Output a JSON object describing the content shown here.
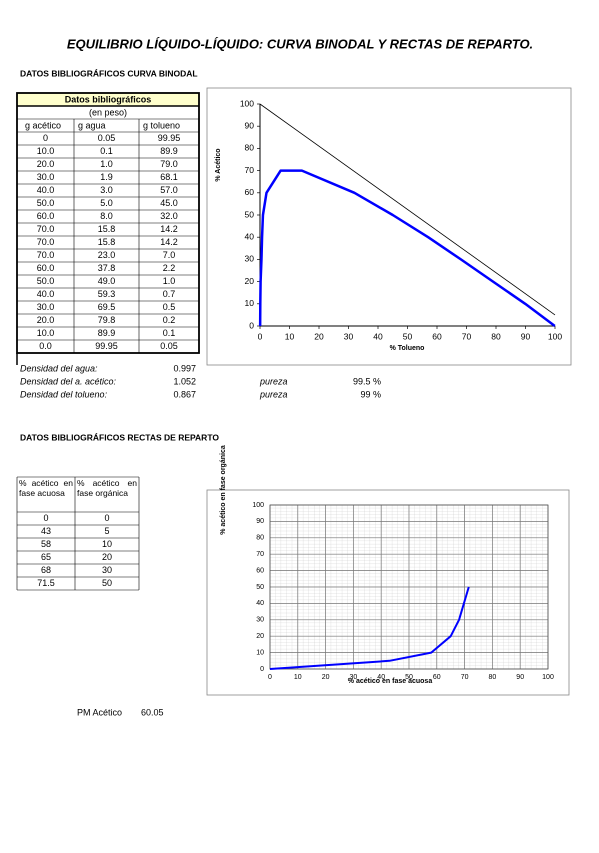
{
  "title": "EQUILIBRIO LÍQUIDO-LÍQUIDO: CURVA BINODAL Y RECTAS DE REPARTO.",
  "section_binodal": "DATOS BIBLIOGRÁFICOS CURVA BINODAL",
  "table_binodal": {
    "title": "Datos bibliográficos",
    "subtitle": "(en peso)",
    "columns": [
      "g acético",
      "g agua",
      "g tolueno"
    ],
    "rows": [
      [
        "0",
        "0.05",
        "99.95"
      ],
      [
        "10.0",
        "0.1",
        "89.9"
      ],
      [
        "20.0",
        "1.0",
        "79.0"
      ],
      [
        "30.0",
        "1.9",
        "68.1"
      ],
      [
        "40.0",
        "3.0",
        "57.0"
      ],
      [
        "50.0",
        "5.0",
        "45.0"
      ],
      [
        "60.0",
        "8.0",
        "32.0"
      ],
      [
        "70.0",
        "15.8",
        "14.2"
      ],
      [
        "70.0",
        "15.8",
        "14.2"
      ],
      [
        "70.0",
        "23.0",
        "7.0"
      ],
      [
        "60.0",
        "37.8",
        "2.2"
      ],
      [
        "50.0",
        "49.0",
        "1.0"
      ],
      [
        "40.0",
        "59.3",
        "0.7"
      ],
      [
        "30.0",
        "69.5",
        "0.5"
      ],
      [
        "20.0",
        "79.8",
        "0.2"
      ],
      [
        "10.0",
        "89.9",
        "0.1"
      ],
      [
        "0.0",
        "99.95",
        "0.05"
      ]
    ]
  },
  "densities": [
    {
      "label": "Densidad del agua:",
      "value": "0.997"
    },
    {
      "label": "Densidad del a. acético:",
      "value": "1.052",
      "purity_label": "pureza",
      "purity": "99.5 %"
    },
    {
      "label": "Densidad del tolueno:",
      "value": "0.867",
      "purity_label": "pureza",
      "purity": "99 %"
    }
  ],
  "section_reparto": "DATOS BIBLIOGRÁFICOS RECTAS DE REPARTO",
  "table_reparto": {
    "columns": [
      "% acético en fase acuosa",
      "% acético en fase orgánica"
    ],
    "rows": [
      [
        "0",
        "0"
      ],
      [
        "43",
        "5"
      ],
      [
        "58",
        "10"
      ],
      [
        "65",
        "20"
      ],
      [
        "68",
        "30"
      ],
      [
        "71.5",
        "50"
      ]
    ]
  },
  "pm": {
    "label": "PM Acético",
    "value": "60.05"
  },
  "chart_data": [
    {
      "type": "line",
      "xlabel": "% Tolueno",
      "ylabel": "% Acético",
      "xlim": [
        0,
        100
      ],
      "ylim": [
        0,
        100
      ],
      "xticks": [
        0,
        10,
        20,
        30,
        40,
        50,
        60,
        70,
        80,
        90,
        100
      ],
      "yticks": [
        0,
        10,
        20,
        30,
        40,
        50,
        60,
        70,
        80,
        90,
        100
      ],
      "grid": false,
      "series": [
        {
          "color": "#0000ff",
          "x": [
            99.95,
            89.9,
            79.0,
            68.1,
            57.0,
            45.0,
            32.0,
            14.2,
            7.0,
            2.2,
            1.0,
            0.7,
            0.5,
            0.2,
            0.1,
            0.05
          ],
          "values": [
            0,
            10,
            20,
            30,
            40,
            50,
            60,
            70,
            70,
            60,
            50,
            40,
            30,
            20,
            10,
            0
          ]
        },
        {
          "color": "#000000",
          "x": [
            0,
            100
          ],
          "values": [
            100,
            5
          ]
        }
      ]
    },
    {
      "type": "line",
      "xlabel": "% acético en fase acuosa",
      "ylabel": "% acético en fase orgánica",
      "xlim": [
        0,
        100
      ],
      "ylim": [
        0,
        100
      ],
      "xticks": [
        0,
        10,
        20,
        30,
        40,
        50,
        60,
        70,
        80,
        90,
        100
      ],
      "yticks": [
        0,
        10,
        20,
        30,
        40,
        50,
        60,
        70,
        80,
        90,
        100
      ],
      "grid": true,
      "series": [
        {
          "color": "#0000ff",
          "x": [
            0,
            43,
            58,
            65,
            68,
            71.5
          ],
          "values": [
            0,
            5,
            10,
            20,
            30,
            50
          ]
        }
      ]
    }
  ]
}
